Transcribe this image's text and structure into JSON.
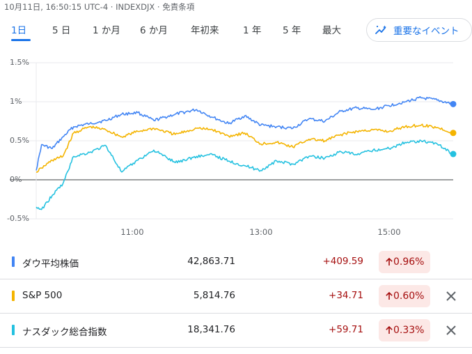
{
  "header": {
    "timestamp": "10月11日, 16:50:15 UTC-4 · INDEXDJX · 免責条項"
  },
  "range_tabs": [
    {
      "label": "1日",
      "active": true
    },
    {
      "label": "5 日",
      "active": false
    },
    {
      "label": "1 か月",
      "active": false
    },
    {
      "label": "6 か月",
      "active": false
    },
    {
      "label": "年初来",
      "active": false
    },
    {
      "label": "1 年",
      "active": false
    },
    {
      "label": "5 年",
      "active": false
    },
    {
      "label": "最大",
      "active": false
    }
  ],
  "events_button": {
    "label": "重要なイベント",
    "icon": "trend-sparkle-icon"
  },
  "chart_data": {
    "type": "line",
    "title": "",
    "xlabel": "",
    "ylabel": "",
    "x_ticks": [
      "11:00",
      "13:00",
      "15:00"
    ],
    "y_ticks": [
      "1.5%",
      "1%",
      "0.5%",
      "0%",
      "-0.5%"
    ],
    "ylim": [
      -0.5,
      1.5
    ],
    "x_range": [
      "09:30",
      "16:00"
    ],
    "grid": true,
    "legend": "table-below",
    "series": [
      {
        "name": "ダウ平均株価",
        "color": "#4285f4",
        "x": [
          "09:30",
          "09:35",
          "09:45",
          "09:55",
          "10:05",
          "10:20",
          "10:35",
          "10:50",
          "11:05",
          "11:20",
          "11:40",
          "12:00",
          "12:15",
          "12:30",
          "12:45",
          "13:00",
          "13:15",
          "13:30",
          "13:45",
          "14:00",
          "14:15",
          "14:30",
          "14:45",
          "15:00",
          "15:15",
          "15:30",
          "15:45",
          "16:00"
        ],
        "y": [
          0.12,
          0.45,
          0.4,
          0.55,
          0.68,
          0.72,
          0.76,
          0.84,
          0.86,
          0.76,
          0.84,
          0.9,
          0.8,
          0.72,
          0.82,
          0.7,
          0.68,
          0.66,
          0.78,
          0.75,
          0.88,
          0.92,
          0.9,
          0.95,
          1.0,
          1.05,
          1.02,
          0.97
        ]
      },
      {
        "name": "S&P 500",
        "color": "#f4b400",
        "x": [
          "09:30",
          "09:35",
          "09:45",
          "09:55",
          "10:05",
          "10:20",
          "10:35",
          "10:50",
          "11:05",
          "11:20",
          "11:40",
          "12:00",
          "12:15",
          "12:30",
          "12:45",
          "13:00",
          "13:15",
          "13:30",
          "13:45",
          "14:00",
          "14:15",
          "14:30",
          "14:45",
          "15:00",
          "15:15",
          "15:30",
          "15:45",
          "16:00"
        ],
        "y": [
          0.1,
          0.15,
          0.25,
          0.3,
          0.6,
          0.68,
          0.64,
          0.55,
          0.62,
          0.66,
          0.58,
          0.66,
          0.64,
          0.56,
          0.6,
          0.46,
          0.48,
          0.42,
          0.52,
          0.5,
          0.58,
          0.62,
          0.64,
          0.62,
          0.68,
          0.7,
          0.67,
          0.6
        ]
      },
      {
        "name": "ナスダック総合指数",
        "color": "#24c1e0",
        "x": [
          "09:30",
          "09:35",
          "09:45",
          "09:55",
          "10:05",
          "10:20",
          "10:35",
          "10:50",
          "11:05",
          "11:20",
          "11:40",
          "12:00",
          "12:15",
          "12:30",
          "12:45",
          "13:00",
          "13:15",
          "13:30",
          "13:45",
          "14:00",
          "14:15",
          "14:30",
          "14:45",
          "15:00",
          "15:15",
          "15:30",
          "15:45",
          "16:00"
        ],
        "y": [
          -0.35,
          -0.38,
          -0.2,
          -0.05,
          0.3,
          0.35,
          0.44,
          0.1,
          0.25,
          0.38,
          0.22,
          0.3,
          0.32,
          0.24,
          0.18,
          0.12,
          0.24,
          0.2,
          0.3,
          0.28,
          0.36,
          0.32,
          0.38,
          0.4,
          0.48,
          0.5,
          0.46,
          0.33
        ]
      }
    ]
  },
  "indices": [
    {
      "name": "ダウ平均株価",
      "color": "#4285f4",
      "value": "42,863.71",
      "change": "+409.59",
      "percent": "0.96%",
      "removable": false
    },
    {
      "name": "S&P 500",
      "color": "#f4b400",
      "value": "5,814.76",
      "change": "+34.71",
      "percent": "0.60%",
      "removable": true
    },
    {
      "name": "ナスダック総合指数",
      "color": "#24c1e0",
      "value": "18,341.76",
      "change": "+59.71",
      "percent": "0.33%",
      "removable": true
    }
  ]
}
